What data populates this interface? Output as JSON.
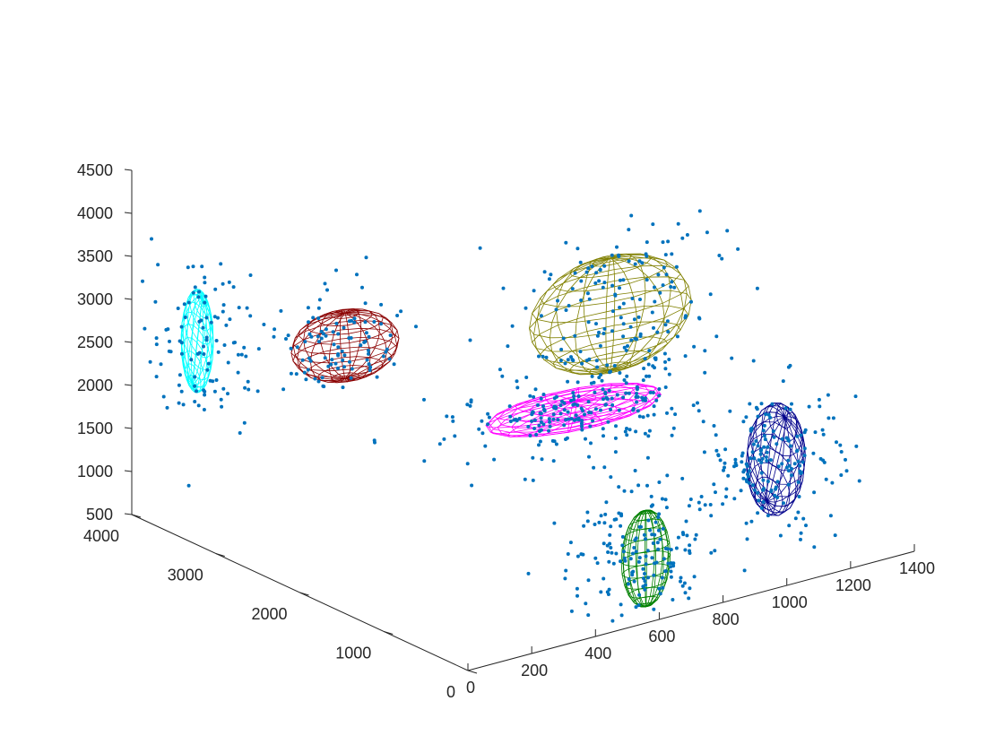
{
  "chart_data": {
    "type": "scatter",
    "dimensions": 3,
    "title": "",
    "xlabel": "",
    "ylabel": "",
    "zlabel": "",
    "x_ticks": [
      0,
      200,
      400,
      600,
      800,
      1000,
      1200,
      1400
    ],
    "y_ticks": [
      0,
      1000,
      2000,
      3000,
      4000
    ],
    "z_ticks": [
      500,
      1000,
      1500,
      2000,
      2500,
      3000,
      3500,
      4000,
      4500
    ],
    "xlim": [
      0,
      1400
    ],
    "ylim": [
      0,
      4000
    ],
    "zlim": [
      500,
      4500
    ],
    "grid": false,
    "legend": "none",
    "colors": {
      "points": "#0072BD",
      "axis": "#262626",
      "ellipsoids": [
        "#00FFFF",
        "#8B0000",
        "#FF00FF",
        "#808000",
        "#00008B",
        "#008000"
      ]
    },
    "point_clusters": [
      {
        "center": [
          100,
          3600,
          2600
        ],
        "spread": [
          80,
          250,
          500
        ],
        "count": 120
      },
      {
        "center": [
          300,
          2600,
          2800
        ],
        "spread": [
          80,
          250,
          280
        ],
        "count": 100
      },
      {
        "center": [
          700,
          1400,
          2200
        ],
        "spread": [
          200,
          200,
          220
        ],
        "count": 220
      },
      {
        "center": [
          1000,
          2100,
          2700
        ],
        "spread": [
          160,
          240,
          500
        ],
        "count": 150
      },
      {
        "center": [
          1150,
          700,
          1500
        ],
        "spread": [
          100,
          250,
          350
        ],
        "count": 180
      },
      {
        "center": [
          650,
          350,
          1000
        ],
        "spread": [
          100,
          200,
          450
        ],
        "count": 200
      }
    ],
    "ellipsoids": [
      {
        "color": "#00FFFF",
        "center": [
          100,
          3600,
          2600
        ],
        "radii": [
          40,
          120,
          600
        ],
        "tilt": 0.5
      },
      {
        "color": "#8B0000",
        "center": [
          300,
          2600,
          2800
        ],
        "radii": [
          150,
          300,
          380
        ],
        "tilt": 0
      },
      {
        "color": "#FF00FF",
        "center": [
          700,
          1400,
          2200
        ],
        "radii": [
          260,
          340,
          100
        ],
        "tilt": 0
      },
      {
        "color": "#808000",
        "center": [
          1000,
          2100,
          2700
        ],
        "radii": [
          240,
          320,
          650
        ],
        "tilt": 0
      },
      {
        "color": "#00008B",
        "center": [
          1150,
          700,
          1500
        ],
        "radii": [
          80,
          180,
          650
        ],
        "tilt": 0.6
      },
      {
        "color": "#008000",
        "center": [
          650,
          350,
          1000
        ],
        "radii": [
          70,
          120,
          560
        ],
        "tilt": 0
      }
    ]
  }
}
